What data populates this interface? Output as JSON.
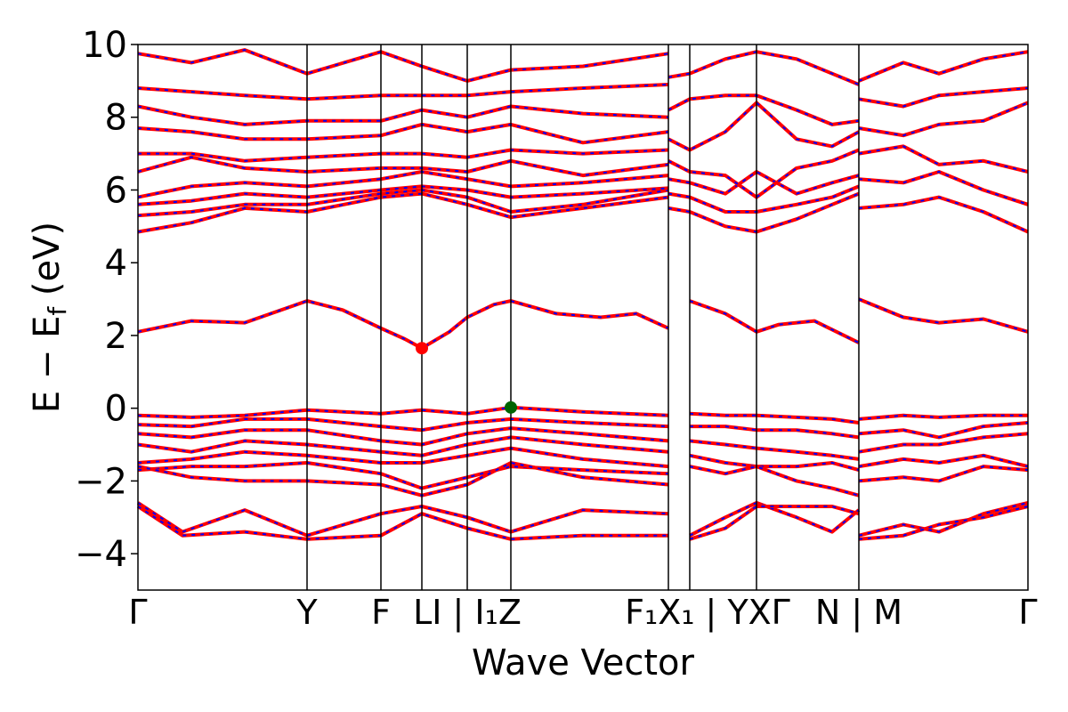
{
  "chart_data": {
    "type": "line",
    "title": "",
    "xlabel": "Wave Vector",
    "ylabel": "E − E_f (eV)",
    "ylabel_parts": {
      "main": "E − E",
      "subscript": "f",
      "unit": " (eV)"
    },
    "ylim": [
      -5,
      10
    ],
    "yticks": [
      -4,
      -2,
      0,
      2,
      4,
      6,
      8,
      10
    ],
    "xlim": [
      0,
      1
    ],
    "grid": false,
    "legend": "none",
    "colors": {
      "band": "#ff0000",
      "band_dash": "#0000ff",
      "cbm": "#ff0000",
      "vbm": "#006400",
      "frame": "#000000"
    },
    "high_symmetry_points": [
      {
        "label": "Γ",
        "x": 0.0
      },
      {
        "label": "Y",
        "x": 0.19
      },
      {
        "label": "F",
        "x": 0.273
      },
      {
        "label": "L",
        "x": 0.319
      },
      {
        "label": "I | I₁",
        "x": 0.37
      },
      {
        "label": "Z",
        "x": 0.419
      },
      {
        "label": "F₁ | Y",
        "x": 0.596
      },
      {
        "label": "X₁ | Y",
        "x": 0.62
      },
      {
        "label": "X",
        "x": 0.695
      },
      {
        "label": "Γ",
        "x": 0.695
      },
      {
        "label": "N | M",
        "x": 0.81
      },
      {
        "label": "Γ",
        "x": 1.0
      }
    ],
    "tick_labels_display": [
      {
        "text": "Γ",
        "x": 0.0
      },
      {
        "text": "Y",
        "x": 0.19
      },
      {
        "text": "F",
        "x": 0.273
      },
      {
        "text": "LI | I₁Z",
        "x": 0.37
      },
      {
        "text": "F₁X₁ | YXΓ",
        "x": 0.64
      },
      {
        "text": "N | M",
        "x": 0.81
      },
      {
        "text": "Γ",
        "x": 1.0
      }
    ],
    "band_gap_markers": [
      {
        "name": "CBM",
        "x": 0.319,
        "y": 1.65
      },
      {
        "name": "VBM",
        "x": 0.419,
        "y": 0.02
      }
    ],
    "segments": [
      {
        "from": 0.0,
        "to": 0.19
      },
      {
        "from": 0.19,
        "to": 0.273
      },
      {
        "from": 0.273,
        "to": 0.319
      },
      {
        "from": 0.319,
        "to": 0.37
      },
      {
        "from": 0.37,
        "to": 0.419
      },
      {
        "from": 0.419,
        "to": 0.596
      },
      {
        "from": 0.596,
        "to": 0.62
      },
      {
        "from": 0.62,
        "to": 0.695
      },
      {
        "from": 0.695,
        "to": 0.81
      },
      {
        "from": 0.81,
        "to": 1.0
      }
    ],
    "series": [
      {
        "x": [
          0.0,
          0.06,
          0.12,
          0.19,
          0.23,
          0.273,
          0.3,
          0.319,
          0.35,
          0.37,
          0.4,
          0.419,
          0.47,
          0.52,
          0.56,
          0.596
        ],
        "y": [
          2.1,
          2.4,
          2.35,
          2.95,
          2.7,
          2.2,
          1.9,
          1.65,
          2.1,
          2.5,
          2.85,
          2.95,
          2.6,
          2.5,
          2.6,
          2.2
        ]
      },
      {
        "x": [
          0.62,
          0.66,
          0.695,
          0.72,
          0.76,
          0.81
        ],
        "y": [
          2.95,
          2.6,
          2.1,
          2.3,
          2.4,
          1.8
        ]
      },
      {
        "x": [
          0.81,
          0.86,
          0.9,
          0.95,
          1.0
        ],
        "y": [
          3.0,
          2.5,
          2.35,
          2.45,
          2.1
        ]
      },
      {
        "x": [
          0.0,
          0.06,
          0.12,
          0.19,
          0.273,
          0.319,
          0.37,
          0.419,
          0.5,
          0.596
        ],
        "y": [
          -0.2,
          -0.25,
          -0.2,
          -0.05,
          -0.15,
          -0.05,
          -0.15,
          0.02,
          -0.1,
          -0.2
        ]
      },
      {
        "x": [
          0.0,
          0.06,
          0.12,
          0.19,
          0.273,
          0.319,
          0.37,
          0.419,
          0.5,
          0.596
        ],
        "y": [
          -0.45,
          -0.5,
          -0.3,
          -0.3,
          -0.5,
          -0.6,
          -0.4,
          -0.3,
          -0.4,
          -0.5
        ]
      },
      {
        "x": [
          0.0,
          0.06,
          0.12,
          0.19,
          0.273,
          0.319,
          0.37,
          0.419,
          0.5,
          0.596
        ],
        "y": [
          -0.7,
          -0.8,
          -0.6,
          -0.6,
          -0.9,
          -1.0,
          -0.7,
          -0.55,
          -0.7,
          -0.9
        ]
      },
      {
        "x": [
          0.0,
          0.06,
          0.12,
          0.19,
          0.273,
          0.319,
          0.37,
          0.419,
          0.5,
          0.596
        ],
        "y": [
          -1.0,
          -1.2,
          -0.9,
          -1.0,
          -1.2,
          -1.3,
          -1.0,
          -0.8,
          -1.0,
          -1.2
        ]
      },
      {
        "x": [
          0.0,
          0.06,
          0.12,
          0.19,
          0.273,
          0.319,
          0.37,
          0.419,
          0.5,
          0.596
        ],
        "y": [
          -1.5,
          -1.4,
          -1.2,
          -1.3,
          -1.5,
          -1.5,
          -1.3,
          -1.1,
          -1.4,
          -1.6
        ]
      },
      {
        "x": [
          0.0,
          0.06,
          0.12,
          0.19,
          0.273,
          0.319,
          0.37,
          0.419,
          0.5,
          0.596
        ],
        "y": [
          -1.7,
          -1.6,
          -1.6,
          -1.5,
          -1.8,
          -2.2,
          -1.9,
          -1.6,
          -1.7,
          -1.8
        ]
      },
      {
        "x": [
          0.0,
          0.06,
          0.12,
          0.19,
          0.273,
          0.319,
          0.37,
          0.419,
          0.5,
          0.596
        ],
        "y": [
          -1.6,
          -1.9,
          -2.0,
          -2.0,
          -2.1,
          -2.4,
          -2.1,
          -1.5,
          -1.9,
          -2.1
        ]
      },
      {
        "x": [
          0.62,
          0.66,
          0.695,
          0.74,
          0.78,
          0.81
        ],
        "y": [
          -0.15,
          -0.2,
          -0.2,
          -0.25,
          -0.3,
          -0.4
        ]
      },
      {
        "x": [
          0.62,
          0.66,
          0.695,
          0.74,
          0.78,
          0.81
        ],
        "y": [
          -0.5,
          -0.5,
          -0.6,
          -0.6,
          -0.7,
          -0.8
        ]
      },
      {
        "x": [
          0.62,
          0.66,
          0.695,
          0.74,
          0.78,
          0.81
        ],
        "y": [
          -0.9,
          -1.0,
          -1.1,
          -1.2,
          -1.3,
          -1.4
        ]
      },
      {
        "x": [
          0.62,
          0.66,
          0.695,
          0.74,
          0.78,
          0.81
        ],
        "y": [
          -1.3,
          -1.5,
          -1.6,
          -1.6,
          -1.5,
          -1.7
        ]
      },
      {
        "x": [
          0.62,
          0.66,
          0.695,
          0.74,
          0.78,
          0.81
        ],
        "y": [
          -1.6,
          -1.8,
          -1.6,
          -2.0,
          -2.2,
          -2.4
        ]
      },
      {
        "x": [
          0.81,
          0.86,
          0.9,
          0.95,
          1.0
        ],
        "y": [
          -0.3,
          -0.2,
          -0.25,
          -0.2,
          -0.2
        ]
      },
      {
        "x": [
          0.81,
          0.86,
          0.9,
          0.95,
          1.0
        ],
        "y": [
          -0.7,
          -0.6,
          -0.8,
          -0.5,
          -0.4
        ]
      },
      {
        "x": [
          0.81,
          0.86,
          0.9,
          0.95,
          1.0
        ],
        "y": [
          -1.2,
          -1.0,
          -1.0,
          -0.8,
          -0.7
        ]
      },
      {
        "x": [
          0.81,
          0.86,
          0.9,
          0.95,
          1.0
        ],
        "y": [
          -1.6,
          -1.4,
          -1.5,
          -1.3,
          -1.6
        ]
      },
      {
        "x": [
          0.81,
          0.86,
          0.9,
          0.95,
          1.0
        ],
        "y": [
          -2.0,
          -1.9,
          -2.0,
          -1.6,
          -1.7
        ]
      },
      {
        "x": [
          0.0,
          0.05,
          0.12,
          0.19,
          0.273,
          0.319,
          0.37,
          0.419,
          0.5,
          0.596
        ],
        "y": [
          -2.6,
          -3.4,
          -2.8,
          -3.5,
          -2.9,
          -2.7,
          -3.0,
          -3.4,
          -2.8,
          -2.9
        ]
      },
      {
        "x": [
          0.0,
          0.05,
          0.12,
          0.19,
          0.273,
          0.319,
          0.37,
          0.419,
          0.5,
          0.596
        ],
        "y": [
          -2.7,
          -3.5,
          -3.4,
          -3.6,
          -3.5,
          -2.9,
          -3.3,
          -3.6,
          -3.5,
          -3.5
        ]
      },
      {
        "x": [
          0.62,
          0.66,
          0.695,
          0.74,
          0.78,
          0.81
        ],
        "y": [
          -3.5,
          -3.0,
          -2.6,
          -3.0,
          -3.4,
          -2.8
        ]
      },
      {
        "x": [
          0.62,
          0.66,
          0.695,
          0.74,
          0.78,
          0.81
        ],
        "y": [
          -3.6,
          -3.3,
          -2.7,
          -2.7,
          -2.7,
          -2.9
        ]
      },
      {
        "x": [
          0.81,
          0.86,
          0.9,
          0.95,
          1.0
        ],
        "y": [
          -3.5,
          -3.2,
          -3.4,
          -2.9,
          -2.6
        ]
      },
      {
        "x": [
          0.81,
          0.86,
          0.9,
          0.95,
          1.0
        ],
        "y": [
          -3.6,
          -3.5,
          -3.2,
          -3.0,
          -2.7
        ]
      },
      {
        "x": [
          0.0,
          0.06,
          0.12,
          0.19,
          0.273,
          0.319,
          0.37,
          0.419,
          0.5,
          0.596
        ],
        "y": [
          4.85,
          5.1,
          5.5,
          5.4,
          5.8,
          5.9,
          5.6,
          5.25,
          5.5,
          5.8
        ]
      },
      {
        "x": [
          0.0,
          0.06,
          0.12,
          0.19,
          0.273,
          0.319,
          0.37,
          0.419,
          0.5,
          0.596
        ],
        "y": [
          5.3,
          5.4,
          5.6,
          5.6,
          5.9,
          6.0,
          5.8,
          5.4,
          5.6,
          6.0
        ]
      },
      {
        "x": [
          0.0,
          0.06,
          0.12,
          0.19,
          0.273,
          0.319,
          0.37,
          0.419,
          0.5,
          0.596
        ],
        "y": [
          5.6,
          5.7,
          5.9,
          5.8,
          6.0,
          6.1,
          6.0,
          5.8,
          5.9,
          6.05
        ]
      },
      {
        "x": [
          0.0,
          0.06,
          0.12,
          0.19,
          0.273,
          0.319,
          0.37,
          0.419,
          0.5,
          0.596
        ],
        "y": [
          5.8,
          6.1,
          6.2,
          6.1,
          6.3,
          6.5,
          6.3,
          6.1,
          6.2,
          6.4
        ]
      },
      {
        "x": [
          0.0,
          0.06,
          0.12,
          0.19,
          0.273,
          0.319,
          0.37,
          0.419,
          0.5,
          0.596
        ],
        "y": [
          6.5,
          6.9,
          6.6,
          6.5,
          6.6,
          6.6,
          6.5,
          6.8,
          6.4,
          6.7
        ]
      },
      {
        "x": [
          0.0,
          0.06,
          0.12,
          0.19,
          0.273,
          0.319,
          0.37,
          0.419,
          0.5,
          0.596
        ],
        "y": [
          7.0,
          7.0,
          6.8,
          6.9,
          7.0,
          7.0,
          6.9,
          7.1,
          7.0,
          7.1
        ]
      },
      {
        "x": [
          0.0,
          0.06,
          0.12,
          0.19,
          0.273,
          0.319,
          0.37,
          0.419,
          0.5,
          0.596
        ],
        "y": [
          7.7,
          7.6,
          7.4,
          7.4,
          7.5,
          7.8,
          7.6,
          7.8,
          7.3,
          7.6
        ]
      },
      {
        "x": [
          0.0,
          0.06,
          0.12,
          0.19,
          0.273,
          0.319,
          0.37,
          0.419,
          0.5,
          0.596
        ],
        "y": [
          8.3,
          8.0,
          7.8,
          7.9,
          7.9,
          8.2,
          8.0,
          8.3,
          8.1,
          8.0
        ]
      },
      {
        "x": [
          0.0,
          0.06,
          0.12,
          0.19,
          0.273,
          0.319,
          0.37,
          0.419,
          0.5,
          0.596
        ],
        "y": [
          8.8,
          8.7,
          8.6,
          8.5,
          8.6,
          8.6,
          8.6,
          8.7,
          8.8,
          8.9
        ]
      },
      {
        "x": [
          0.0,
          0.06,
          0.12,
          0.19,
          0.273,
          0.319,
          0.37,
          0.419,
          0.5,
          0.596
        ],
        "y": [
          9.75,
          9.5,
          9.85,
          9.2,
          9.8,
          9.4,
          9.0,
          9.3,
          9.4,
          9.75
        ]
      },
      {
        "x": [
          0.596,
          0.62,
          0.66,
          0.695,
          0.74,
          0.78,
          0.81
        ],
        "y": [
          5.5,
          5.4,
          5.0,
          4.85,
          5.2,
          5.6,
          5.9
        ]
      },
      {
        "x": [
          0.596,
          0.62,
          0.66,
          0.695,
          0.74,
          0.78,
          0.81
        ],
        "y": [
          5.9,
          5.8,
          5.4,
          5.4,
          5.6,
          5.8,
          6.1
        ]
      },
      {
        "x": [
          0.596,
          0.62,
          0.66,
          0.695,
          0.74,
          0.78,
          0.81
        ],
        "y": [
          6.3,
          6.2,
          5.9,
          6.5,
          5.9,
          6.2,
          6.4
        ]
      },
      {
        "x": [
          0.596,
          0.62,
          0.66,
          0.695,
          0.74,
          0.78,
          0.81
        ],
        "y": [
          6.8,
          6.5,
          6.4,
          5.8,
          6.6,
          6.8,
          7.1
        ]
      },
      {
        "x": [
          0.596,
          0.62,
          0.66,
          0.695,
          0.74,
          0.78,
          0.81
        ],
        "y": [
          7.4,
          7.1,
          7.6,
          8.4,
          7.4,
          7.2,
          7.6
        ]
      },
      {
        "x": [
          0.596,
          0.62,
          0.66,
          0.695,
          0.74,
          0.78,
          0.81
        ],
        "y": [
          8.2,
          8.5,
          8.6,
          8.6,
          8.2,
          7.8,
          7.9
        ]
      },
      {
        "x": [
          0.596,
          0.62,
          0.66,
          0.695,
          0.74,
          0.78,
          0.81
        ],
        "y": [
          9.1,
          9.2,
          9.6,
          9.8,
          9.6,
          9.2,
          8.9
        ]
      },
      {
        "x": [
          0.81,
          0.86,
          0.9,
          0.95,
          1.0
        ],
        "y": [
          5.5,
          5.6,
          5.8,
          5.4,
          4.85
        ]
      },
      {
        "x": [
          0.81,
          0.86,
          0.9,
          0.95,
          1.0
        ],
        "y": [
          6.3,
          6.2,
          6.5,
          6.0,
          5.6
        ]
      },
      {
        "x": [
          0.81,
          0.86,
          0.9,
          0.95,
          1.0
        ],
        "y": [
          7.0,
          7.2,
          6.7,
          6.8,
          6.5
        ]
      },
      {
        "x": [
          0.81,
          0.86,
          0.9,
          0.95,
          1.0
        ],
        "y": [
          7.7,
          7.5,
          7.8,
          7.9,
          8.4
        ]
      },
      {
        "x": [
          0.81,
          0.86,
          0.9,
          0.95,
          1.0
        ],
        "y": [
          8.5,
          8.3,
          8.6,
          8.7,
          8.8
        ]
      },
      {
        "x": [
          0.81,
          0.86,
          0.9,
          0.95,
          1.0
        ],
        "y": [
          9.0,
          9.5,
          9.2,
          9.6,
          9.8
        ]
      }
    ]
  }
}
